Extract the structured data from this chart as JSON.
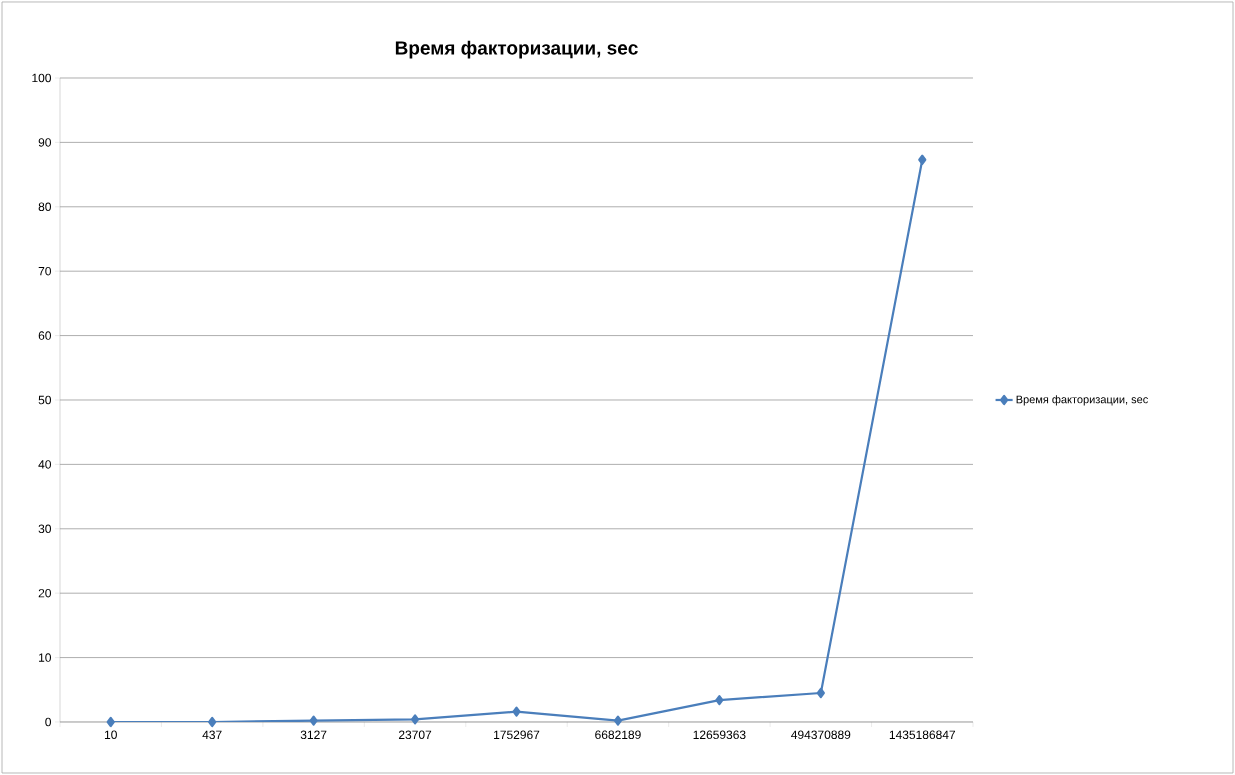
{
  "chart_data": {
    "type": "line",
    "title": "Время факторизации, sec",
    "categories": [
      "10",
      "437",
      "3127",
      "23707",
      "1752967",
      "6682189",
      "12659363",
      "494370889",
      "1435186847"
    ],
    "series": [
      {
        "name": "Время факторизации, sec",
        "color": "#4a7ebb",
        "values": [
          0,
          0,
          0.2,
          0.4,
          1.6,
          0.2,
          3.4,
          4.5,
          87.3
        ]
      }
    ],
    "ylim": [
      0,
      100
    ],
    "yticks": [
      0,
      10,
      20,
      30,
      40,
      50,
      60,
      70,
      80,
      90,
      100
    ],
    "grid": "y",
    "legend": "right",
    "marker": "diamond",
    "line_style": "solid"
  }
}
